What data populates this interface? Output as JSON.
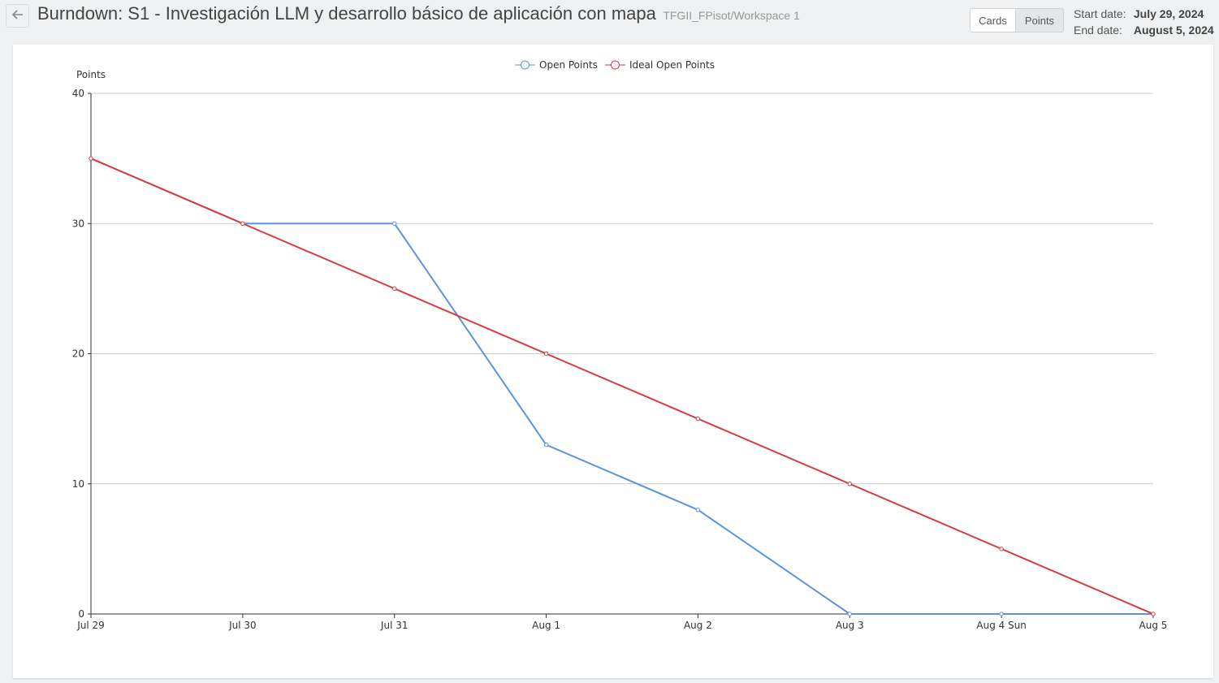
{
  "header": {
    "title": "Burndown: S1 - Investigación LLM y desarrollo básico de aplicación con mapa",
    "subtitle": "TFGII_FPisot/Workspace 1",
    "back_icon": "arrow-left-icon",
    "toggle": {
      "cards_label": "Cards",
      "points_label": "Points",
      "selected": "Points"
    },
    "start_label": "Start date:",
    "start_value": "July 29, 2024",
    "end_label": "End date:",
    "end_value": "August 5, 2024"
  },
  "chart_data": {
    "type": "line",
    "ylabel": "Points",
    "ylim": [
      0,
      40
    ],
    "yticks": [
      0,
      10,
      20,
      30,
      40
    ],
    "grid": true,
    "legend_position": "top-center",
    "categories": [
      "Jul 29",
      "Jul 30",
      "Jul 31",
      "Aug 1",
      "Aug 2",
      "Aug 3",
      "Aug 4 Sun",
      "Aug 5"
    ],
    "series": [
      {
        "name": "Open Points",
        "color": "#5b93e0",
        "values": [
          35,
          30,
          30,
          13,
          8,
          0,
          0,
          0
        ]
      },
      {
        "name": "Ideal Open Points",
        "color": "#d93a3a",
        "values": [
          35,
          30,
          25,
          20,
          15,
          10,
          5,
          0
        ]
      }
    ]
  }
}
